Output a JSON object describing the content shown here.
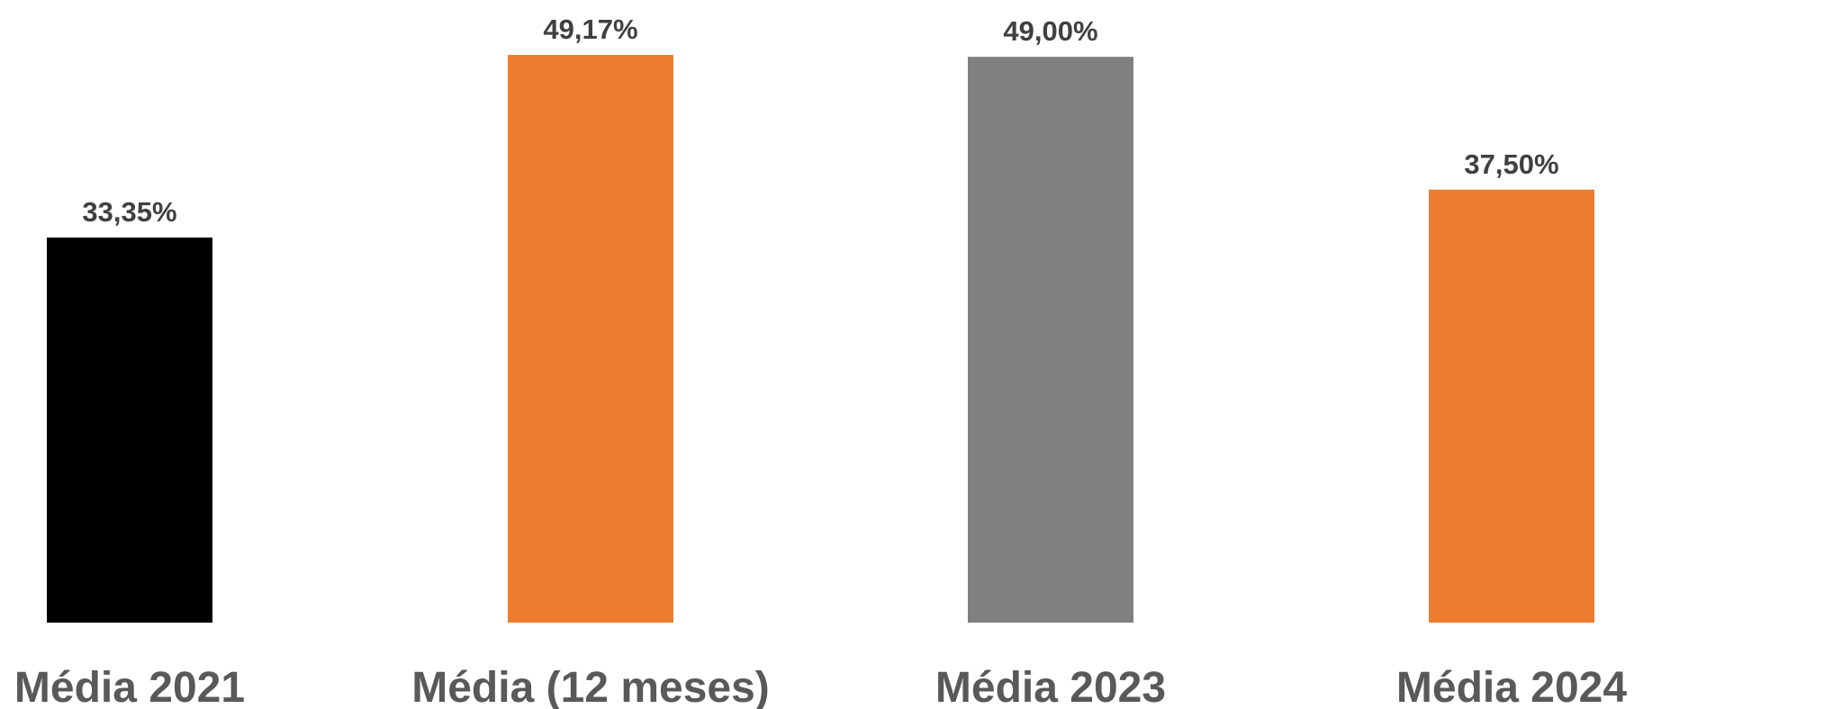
{
  "chart_data": {
    "type": "bar",
    "title": "",
    "xlabel": "",
    "ylabel": "",
    "categories": [
      "Média 2021",
      "Média (12 meses)",
      "Média 2023",
      "Média 2024"
    ],
    "values": [
      33.35,
      49.17,
      49.0,
      37.5
    ],
    "value_labels": [
      "33,35%",
      "49,17%",
      "49,00%",
      "37,50%"
    ],
    "bar_colors": [
      "#000000",
      "#ED7D31",
      "#808080",
      "#ED7D31"
    ],
    "ylim": [
      0,
      49.17
    ],
    "grid": false,
    "legend": "none",
    "axes_visible": false
  }
}
